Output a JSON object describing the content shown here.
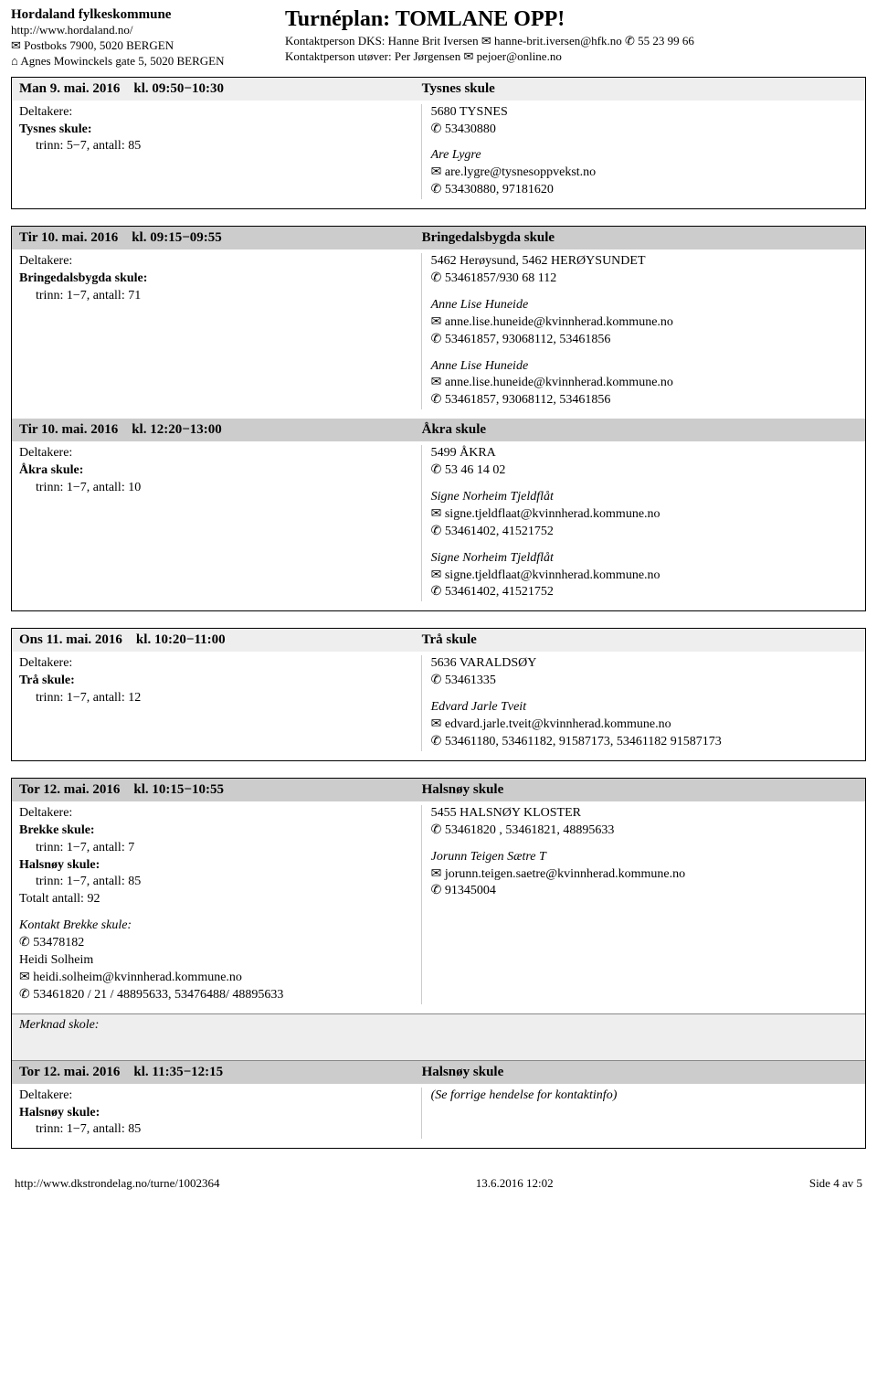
{
  "header": {
    "org_name": "Hordaland fylkeskommune",
    "url": "http://www.hordaland.no/",
    "postbox": "Postboks 7900, 5020 BERGEN",
    "visit": "Agnes Mowinckels gate 5, 5020 BERGEN",
    "tour_title": "Turnéplan: TOMLANE OPP!",
    "dks_label": "Kontaktperson DKS:",
    "dks_name": "Hanne Brit Iversen",
    "dks_email": "hanne-brit.iversen@hfk.no",
    "dks_phone": "55 23 99 66",
    "utover_label": "Kontaktperson utøver:",
    "utover_name": "Per Jørgensen",
    "utover_email": "pejoer@online.no"
  },
  "icons": {
    "mail": "✉",
    "phone": "✆",
    "house": "⌂"
  },
  "labels": {
    "deltakere": "Deltakere:",
    "kl": "kl."
  },
  "footer": {
    "url": "http://www.dkstrondelag.no/turne/1002364",
    "date": "13.6.2016 12:02",
    "page": "Side 4 av 5"
  },
  "events": [
    {
      "header_bg": "eh-light",
      "date": "Man 9. mai. 2016",
      "time": "09:50−10:30",
      "place": "Tysnes skule",
      "left": [
        {
          "t": "b",
          "v": "Tysnes skule:"
        },
        {
          "t": "i",
          "v": "trinn: 5−7, antall: 85"
        }
      ],
      "right": {
        "addr": "5680 TYSNES",
        "phone1": "53430880",
        "contacts": [
          {
            "name": "Are Lygre",
            "email": "are.lygre@tysnesoppvekst.no",
            "phone": "53430880, 97181620"
          }
        ]
      }
    },
    {
      "header_bg": "eh-dark",
      "date": "Tir 10. mai. 2016",
      "time": "09:15−09:55",
      "place": "Bringedalsbygda skule",
      "left": [
        {
          "t": "b",
          "v": "Bringedalsbygda skule:"
        },
        {
          "t": "i",
          "v": "trinn: 1−7, antall: 71"
        }
      ],
      "right": {
        "addr": "5462 Herøysund, 5462 HERØYSUNDET",
        "phone1": "53461857/930 68 112",
        "contacts": [
          {
            "name": "Anne Lise Huneide",
            "email": "anne.lise.huneide@kvinnherad.kommune.no",
            "phone": "53461857, 93068112, 53461856"
          },
          {
            "name": "Anne Lise Huneide",
            "email": "anne.lise.huneide@kvinnherad.kommune.no",
            "phone": "53461857, 93068112, 53461856"
          }
        ]
      },
      "chain_next": true
    },
    {
      "header_bg": "eh-dark",
      "date": "Tir 10. mai. 2016",
      "time": "12:20−13:00",
      "place": "Åkra skule",
      "left": [
        {
          "t": "b",
          "v": "Åkra skule:"
        },
        {
          "t": "i",
          "v": "trinn: 1−7, antall: 10"
        }
      ],
      "right": {
        "addr": "5499 ÅKRA",
        "phone1": "53 46 14 02",
        "contacts": [
          {
            "name": "Signe Norheim Tjeldflåt",
            "email": "signe.tjeldflaat@kvinnherad.kommune.no",
            "phone": "53461402, 41521752"
          },
          {
            "name": "Signe Norheim Tjeldflåt",
            "email": "signe.tjeldflaat@kvinnherad.kommune.no",
            "phone": "53461402, 41521752"
          }
        ]
      }
    },
    {
      "header_bg": "eh-light",
      "date": "Ons 11. mai. 2016",
      "time": "10:20−11:00",
      "place": "Trå skule",
      "left": [
        {
          "t": "b",
          "v": "Trå skule:"
        },
        {
          "t": "i",
          "v": "trinn: 1−7, antall: 12"
        }
      ],
      "right": {
        "addr": "5636 VARALDSØY",
        "phone1": "53461335",
        "contacts": [
          {
            "name": "Edvard Jarle Tveit",
            "email": "edvard.jarle.tveit@kvinnherad.kommune.no",
            "phone": "53461180, 53461182, 91587173, 53461182 91587173"
          }
        ]
      }
    },
    {
      "header_bg": "eh-dark",
      "date": "Tor 12. mai. 2016",
      "time": "10:15−10:55",
      "place": "Halsnøy skule",
      "left_custom": {
        "schools": [
          {
            "name": "Brekke skule:",
            "detail": "trinn: 1−7, antall: 7"
          },
          {
            "name": "Halsnøy skule:",
            "detail": "trinn: 1−7, antall: 85"
          }
        ],
        "total": "Totalt antall: 92",
        "kontakt_label": "Kontakt Brekke skule:",
        "kontakt_phone": "53478182",
        "kontakt_name": "Heidi Solheim",
        "kontakt_email": "heidi.solheim@kvinnherad.kommune.no",
        "kontakt_phone2": "53461820 / 21 / 48895633, 53476488/ 48895633"
      },
      "right": {
        "addr": "5455 HALSNØY KLOSTER",
        "phone1": "53461820 , 53461821, 48895633",
        "contacts": [
          {
            "name": "Jorunn Teigen Sætre T",
            "email": "jorunn.teigen.saetre@kvinnherad.kommune.no",
            "phone": "91345004"
          }
        ]
      },
      "merknad": "Merknad skole:",
      "chain_next": true
    },
    {
      "header_bg": "eh-dark",
      "date": "Tor 12. mai. 2016",
      "time": "11:35−12:15",
      "place": "Halsnøy skule",
      "left": [
        {
          "t": "b",
          "v": "Halsnøy skule:"
        },
        {
          "t": "i",
          "v": "trinn: 1−7, antall: 85"
        }
      ],
      "right_note": "(Se forrige hendelse for kontaktinfo)"
    }
  ]
}
